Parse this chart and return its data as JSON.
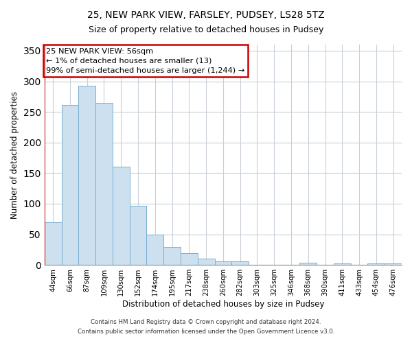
{
  "title": "25, NEW PARK VIEW, FARSLEY, PUDSEY, LS28 5TZ",
  "subtitle": "Size of property relative to detached houses in Pudsey",
  "xlabel": "Distribution of detached houses by size in Pudsey",
  "ylabel": "Number of detached properties",
  "bar_color": "#cce0f0",
  "bar_edge_color": "#7ab0d0",
  "categories": [
    "44sqm",
    "66sqm",
    "87sqm",
    "109sqm",
    "130sqm",
    "152sqm",
    "174sqm",
    "195sqm",
    "217sqm",
    "238sqm",
    "260sqm",
    "282sqm",
    "303sqm",
    "325sqm",
    "346sqm",
    "368sqm",
    "390sqm",
    "411sqm",
    "433sqm",
    "454sqm",
    "476sqm"
  ],
  "values": [
    70,
    261,
    293,
    265,
    160,
    97,
    49,
    29,
    19,
    10,
    6,
    6,
    0,
    0,
    0,
    4,
    0,
    2,
    0,
    2,
    2
  ],
  "ylim": [
    0,
    360
  ],
  "yticks": [
    0,
    50,
    100,
    150,
    200,
    250,
    300,
    350
  ],
  "annotation_title": "25 NEW PARK VIEW: 56sqm",
  "annotation_line1": "← 1% of detached houses are smaller (13)",
  "annotation_line2": "99% of semi-detached houses are larger (1,244) →",
  "annotation_box_color": "#ffffff",
  "annotation_box_edge_color": "#cc0000",
  "property_line_color": "#cc0000",
  "property_line_x": 0,
  "footer_line1": "Contains HM Land Registry data © Crown copyright and database right 2024.",
  "footer_line2": "Contains public sector information licensed under the Open Government Licence v3.0.",
  "background_color": "#ffffff",
  "grid_color": "#c8d0d8",
  "title_fontsize": 10,
  "subtitle_fontsize": 9
}
